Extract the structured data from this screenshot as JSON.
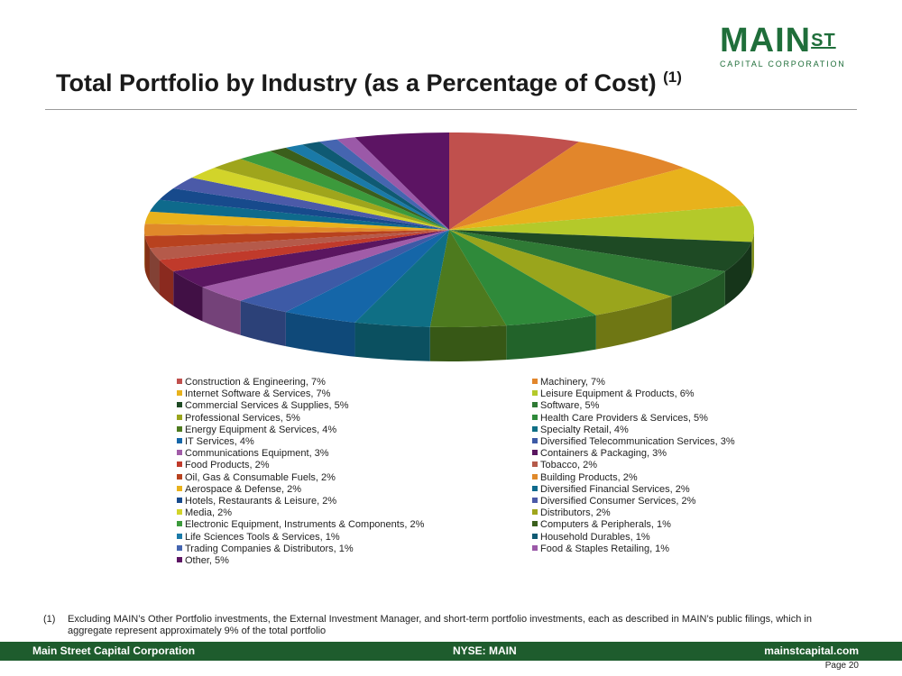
{
  "logo": {
    "main": "MAIN",
    "super": "ST",
    "sub": "CAPITAL CORPORATION"
  },
  "title": "Total Portfolio by Industry (as a Percentage of Cost)",
  "title_note": "(1)",
  "chart_data": {
    "type": "pie",
    "title": "Total Portfolio by Industry (as a Percentage of Cost)",
    "unit": "%",
    "slices": [
      {
        "label": "Construction & Engineering",
        "value": 7,
        "color": "#c0504d"
      },
      {
        "label": "Machinery",
        "value": 7,
        "color": "#e2862b"
      },
      {
        "label": "Internet Software & Services",
        "value": 7,
        "color": "#e8b21c"
      },
      {
        "label": "Leisure Equipment & Products",
        "value": 6,
        "color": "#b4c92a"
      },
      {
        "label": "Commercial Services & Supplies",
        "value": 5,
        "color": "#1e4a24"
      },
      {
        "label": "Software",
        "value": 5,
        "color": "#2f7a35"
      },
      {
        "label": "Professional Services",
        "value": 5,
        "color": "#9aa51c"
      },
      {
        "label": "Health Care Providers & Services",
        "value": 5,
        "color": "#2f8a3a"
      },
      {
        "label": "Energy Equipment & Services",
        "value": 4,
        "color": "#4d7a1e"
      },
      {
        "label": "Specialty Retail",
        "value": 4,
        "color": "#0f6f85"
      },
      {
        "label": "IT Services",
        "value": 4,
        "color": "#1566a8"
      },
      {
        "label": "Diversified Telecommunication Services",
        "value": 3,
        "color": "#3d5aa6"
      },
      {
        "label": "Communications Equipment",
        "value": 3,
        "color": "#a15ca8"
      },
      {
        "label": "Containers & Packaging",
        "value": 3,
        "color": "#5a1660"
      },
      {
        "label": "Food Products",
        "value": 2,
        "color": "#c03a2b"
      },
      {
        "label": "Tobacco",
        "value": 2,
        "color": "#b55a4a"
      },
      {
        "label": "Oil, Gas & Consumable Fuels",
        "value": 2,
        "color": "#b8421f"
      },
      {
        "label": "Building Products",
        "value": 2,
        "color": "#e0892a"
      },
      {
        "label": "Aerospace & Defense",
        "value": 2,
        "color": "#e8b21c"
      },
      {
        "label": "Diversified Financial Services",
        "value": 2,
        "color": "#0e6a8c"
      },
      {
        "label": "Hotels, Restaurants & Leisure",
        "value": 2,
        "color": "#174a8c"
      },
      {
        "label": "Diversified Consumer Services",
        "value": 2,
        "color": "#4b5aa8"
      },
      {
        "label": "Media",
        "value": 2,
        "color": "#d2d42a"
      },
      {
        "label": "Distributors",
        "value": 2,
        "color": "#9fa51c"
      },
      {
        "label": "Electronic Equipment, Instruments & Components",
        "value": 2,
        "color": "#3c9a3c"
      },
      {
        "label": "Computers & Peripherals",
        "value": 1,
        "color": "#3b5f1c"
      },
      {
        "label": "Life Sciences Tools & Services",
        "value": 1,
        "color": "#1a7aa8"
      },
      {
        "label": "Household Durables",
        "value": 1,
        "color": "#0f5a73"
      },
      {
        "label": "Trading Companies & Distributors",
        "value": 1,
        "color": "#4565b0"
      },
      {
        "label": "Food & Staples Retailing",
        "value": 1,
        "color": "#9b59a8"
      },
      {
        "label": "Other",
        "value": 5,
        "color": "#5c1463"
      }
    ]
  },
  "footnote": {
    "num": "(1)",
    "text": "Excluding MAIN’s Other Portfolio investments, the External Investment Manager, and short-term portfolio investments, each as described in MAIN’s public filings, which in aggregate represent approximately 9% of the total portfolio"
  },
  "footer": {
    "left": "Main Street Capital Corporation",
    "center": "NYSE: MAIN",
    "right": "mainstcapital.com"
  },
  "page": "Page  20"
}
